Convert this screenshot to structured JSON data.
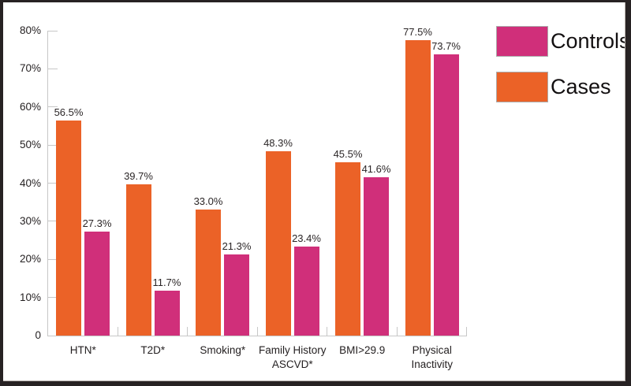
{
  "legend": {
    "items": [
      {
        "label": "Controls",
        "color": "#D02F7A"
      },
      {
        "label": "Cases",
        "color": "#EB6227"
      }
    ]
  },
  "chart_data": {
    "type": "bar",
    "title": "",
    "xlabel": "",
    "ylabel": "",
    "categories": [
      "HTN*",
      "T2D*",
      "Smoking*",
      "Family History\nASCVD*",
      "BMI>29.9",
      "Physical\nInactivity"
    ],
    "series": [
      {
        "name": "Cases",
        "color": "#EB6227",
        "values": [
          56.5,
          39.7,
          33.0,
          48.3,
          45.5,
          77.5
        ]
      },
      {
        "name": "Controls",
        "color": "#D02F7A",
        "values": [
          27.3,
          11.7,
          21.3,
          23.4,
          41.6,
          73.7
        ]
      }
    ],
    "value_label_suffix": "%",
    "ylim": [
      0,
      80
    ],
    "yticks": [
      {
        "value": 0,
        "label": "0"
      },
      {
        "value": 10,
        "label": "10%"
      },
      {
        "value": 20,
        "label": "20%"
      },
      {
        "value": 30,
        "label": "30%"
      },
      {
        "value": 40,
        "label": "40%"
      },
      {
        "value": 50,
        "label": "50%"
      },
      {
        "value": 60,
        "label": "60%"
      },
      {
        "value": 70,
        "label": "70%"
      },
      {
        "value": 80,
        "label": "80%"
      }
    ],
    "grid": false,
    "legend_position": "top-right",
    "axis_color": "#c7c7c7",
    "text_color": "#231f20"
  }
}
